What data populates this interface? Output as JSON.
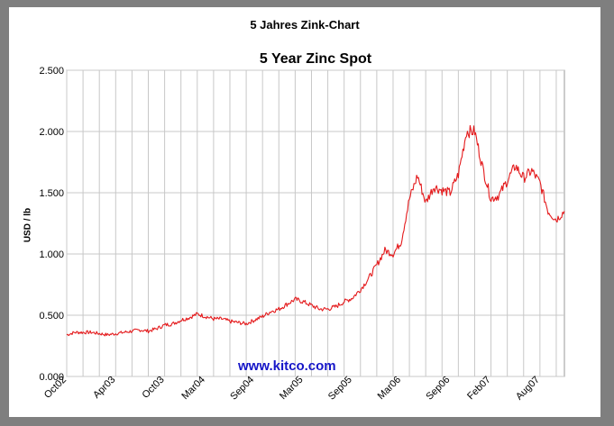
{
  "page_title": "5 Jahres Zink-Chart",
  "watermark": "www.kitco.com",
  "colors": {
    "line": "#e41a1c",
    "grid": "#c8c8c8",
    "background": "#7f7f7f",
    "watermark": "#1515c8"
  },
  "chart_data": {
    "type": "line",
    "title": "5 Year Zinc Spot",
    "xlabel": "",
    "ylabel": "USD / lb",
    "ylim": [
      0,
      2.5
    ],
    "yticks": [
      "0.000",
      "0.500",
      "1.000",
      "1.500",
      "2.000",
      "2.500"
    ],
    "xticks": [
      "Oct02",
      "Apr03",
      "Oct03",
      "Mar04",
      "Sep04",
      "Mar05",
      "Sep05",
      "Mar06",
      "Sep06",
      "Feb07",
      "Aug07"
    ],
    "grid": true,
    "legend": "none",
    "series": [
      {
        "x": [
          "2002-10",
          "2002-11",
          "2002-12",
          "2003-01",
          "2003-02",
          "2003-03",
          "2003-04",
          "2003-05",
          "2003-06",
          "2003-07",
          "2003-08",
          "2003-09",
          "2003-10",
          "2003-11",
          "2003-12",
          "2004-01",
          "2004-02",
          "2004-03",
          "2004-04",
          "2004-05",
          "2004-06",
          "2004-07",
          "2004-08",
          "2004-09",
          "2004-10",
          "2004-11",
          "2004-12",
          "2005-01",
          "2005-02",
          "2005-03",
          "2005-04",
          "2005-05",
          "2005-06",
          "2005-07",
          "2005-08",
          "2005-09",
          "2005-10",
          "2005-11",
          "2005-12",
          "2006-01",
          "2006-02",
          "2006-03",
          "2006-04",
          "2006-05",
          "2006-06",
          "2006-07",
          "2006-08",
          "2006-09",
          "2006-10",
          "2006-11",
          "2006-12",
          "2007-01",
          "2007-02",
          "2007-03",
          "2007-04",
          "2007-05",
          "2007-06",
          "2007-07",
          "2007-08",
          "2007-09",
          "2007-10",
          "2007-11"
        ],
        "values": [
          0.34,
          0.36,
          0.36,
          0.36,
          0.35,
          0.34,
          0.35,
          0.36,
          0.37,
          0.38,
          0.37,
          0.39,
          0.42,
          0.43,
          0.46,
          0.48,
          0.51,
          0.49,
          0.47,
          0.47,
          0.45,
          0.44,
          0.43,
          0.46,
          0.49,
          0.53,
          0.55,
          0.59,
          0.63,
          0.61,
          0.58,
          0.55,
          0.55,
          0.57,
          0.61,
          0.64,
          0.71,
          0.8,
          0.91,
          1.03,
          1.0,
          1.1,
          1.45,
          1.64,
          1.42,
          1.55,
          1.52,
          1.5,
          1.65,
          2.0,
          2.0,
          1.7,
          1.45,
          1.48,
          1.6,
          1.72,
          1.62,
          1.68,
          1.58,
          1.35,
          1.28,
          1.35
        ]
      }
    ]
  }
}
